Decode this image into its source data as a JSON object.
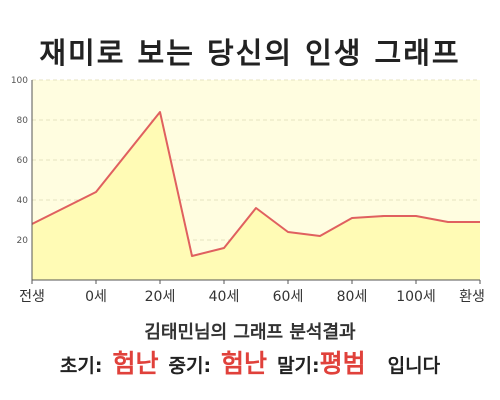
{
  "title": "재미로 보는 당신의 인생 그래프",
  "subtitle": "김태민님의 그래프 분석결과",
  "verdict": {
    "early_label": "초기:",
    "early_value": "험난",
    "middle_label": "중기:",
    "middle_value": "험난",
    "late_label": "말기:",
    "late_value": "평범",
    "ending": "입니다"
  },
  "colors": {
    "plot_bg": "#fffde0",
    "area_fill": "#fffbb5",
    "line": "#e0605f",
    "accent": "#e0413b"
  },
  "chart_data": {
    "type": "area",
    "x_tick_labels": [
      "전생",
      "0세",
      "20세",
      "40세",
      "60세",
      "80세",
      "100세",
      "환생"
    ],
    "x": [
      -20,
      0,
      20,
      30,
      40,
      50,
      60,
      70,
      80,
      90,
      100,
      110
    ],
    "y": [
      28,
      44,
      84,
      12,
      16,
      36,
      24,
      22,
      31,
      32,
      32,
      29
    ],
    "yticks": [
      20,
      40,
      60,
      80,
      100
    ],
    "ylim": [
      0,
      100
    ],
    "xlim": [
      -20,
      120
    ],
    "grid": true
  }
}
